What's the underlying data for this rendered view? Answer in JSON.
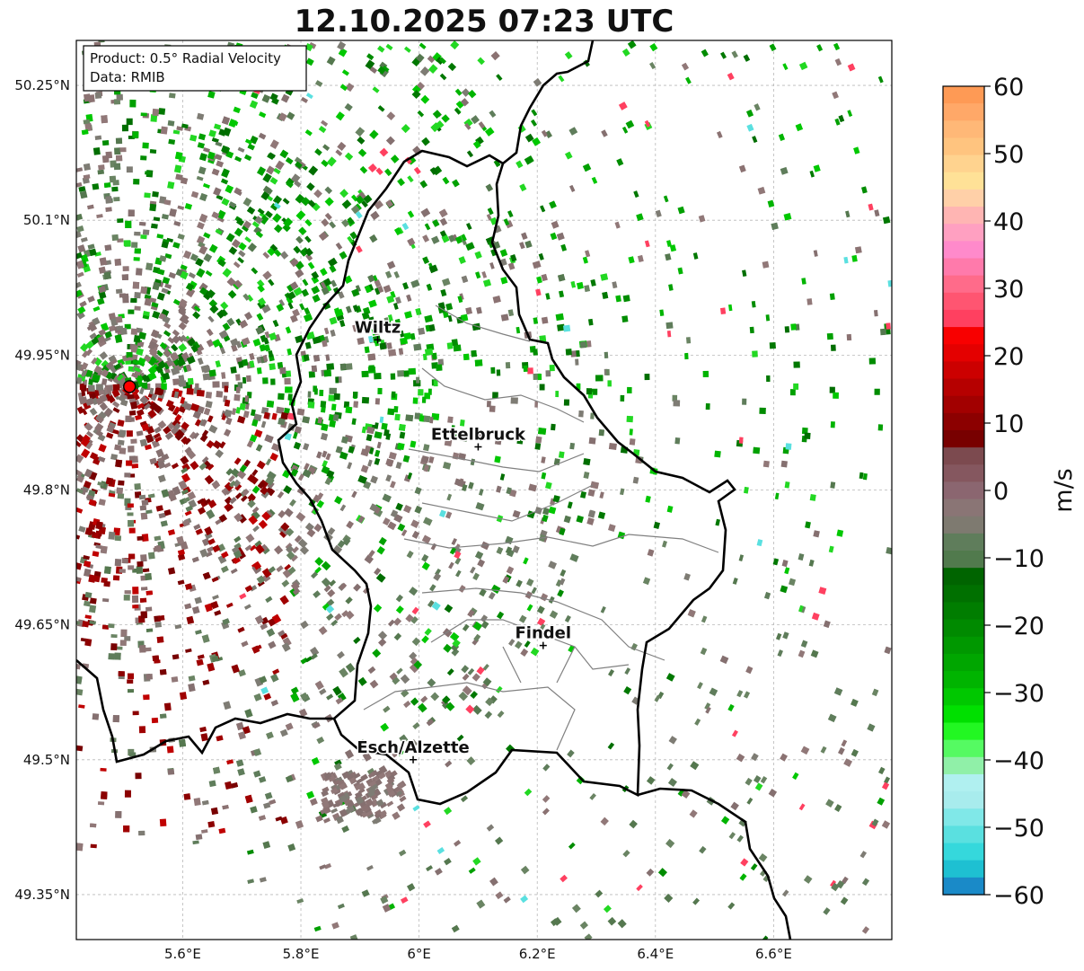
{
  "title": "12.10.2025 07:23 UTC",
  "info_box": {
    "line1": "Product: 0.5° Radial Velocity",
    "line2": "Data: RMIB"
  },
  "map": {
    "lon_range": [
      5.42,
      6.8
    ],
    "lat_range": [
      49.3,
      50.3
    ],
    "x_ticks": [
      {
        "value": 5.6,
        "label": "5.6°E"
      },
      {
        "value": 5.8,
        "label": "5.8°E"
      },
      {
        "value": 6.0,
        "label": "6°E"
      },
      {
        "value": 6.2,
        "label": "6.2°E"
      },
      {
        "value": 6.4,
        "label": "6.4°E"
      },
      {
        "value": 6.6,
        "label": "6.6°E"
      }
    ],
    "y_ticks": [
      {
        "value": 50.25,
        "label": "50.25°N"
      },
      {
        "value": 50.1,
        "label": "50.1°N"
      },
      {
        "value": 49.95,
        "label": "49.95°N"
      },
      {
        "value": 49.8,
        "label": "49.8°N"
      },
      {
        "value": 49.65,
        "label": "49.65°N"
      },
      {
        "value": 49.5,
        "label": "49.5°N"
      },
      {
        "value": 49.35,
        "label": "49.35°N"
      }
    ],
    "grid": true,
    "radar_site": {
      "lon": 5.51,
      "lat": 49.915
    },
    "cities": [
      {
        "name": "Wiltz",
        "lon": 5.93,
        "lat": 49.967
      },
      {
        "name": "Ettelbruck",
        "lon": 6.1,
        "lat": 49.848
      },
      {
        "name": "Findel",
        "lon": 6.21,
        "lat": 49.627
      },
      {
        "name": "Esch/Alzette",
        "lon": 5.99,
        "lat": 49.5
      }
    ]
  },
  "colorbar": {
    "label": "m/s",
    "min": -60,
    "max": 60,
    "ticks": [
      {
        "value": 60,
        "label": "60"
      },
      {
        "value": 50,
        "label": "50"
      },
      {
        "value": 40,
        "label": "40"
      },
      {
        "value": 30,
        "label": "30"
      },
      {
        "value": 20,
        "label": "20"
      },
      {
        "value": 10,
        "label": "10"
      },
      {
        "value": 0,
        "label": "0"
      },
      {
        "value": -10,
        "label": "−10"
      },
      {
        "value": -20,
        "label": "−20"
      },
      {
        "value": -30,
        "label": "−30"
      },
      {
        "value": -40,
        "label": "−40"
      },
      {
        "value": -50,
        "label": "−50"
      },
      {
        "value": -60,
        "label": "−60"
      }
    ],
    "colors_top_to_bottom": [
      "#fe9a55",
      "#ffa868",
      "#ffb877",
      "#ffc47f",
      "#ffd38f",
      "#ffe197",
      "#ffd0a8",
      "#ffb5b3",
      "#ffa0c1",
      "#ff8acb",
      "#ff7aab",
      "#ff6b8a",
      "#ff5571",
      "#ff4060",
      "#f80000",
      "#e40000",
      "#cc0000",
      "#b60000",
      "#a20000",
      "#8c0000",
      "#780000",
      "#7c4a4f",
      "#85575f",
      "#8b6670",
      "#8a7575",
      "#7e7a70",
      "#5f7d5b",
      "#517a4d",
      "#006400",
      "#007000",
      "#007d00",
      "#008a00",
      "#009800",
      "#00a600",
      "#00b400",
      "#00c800",
      "#00e000",
      "#22f722",
      "#55fa62",
      "#90f0a8",
      "#b0f0f0",
      "#a8eced",
      "#80e8e8",
      "#5ae0e0",
      "#35d8dc",
      "#1ec0d2",
      "#1a8ac8"
    ]
  }
}
